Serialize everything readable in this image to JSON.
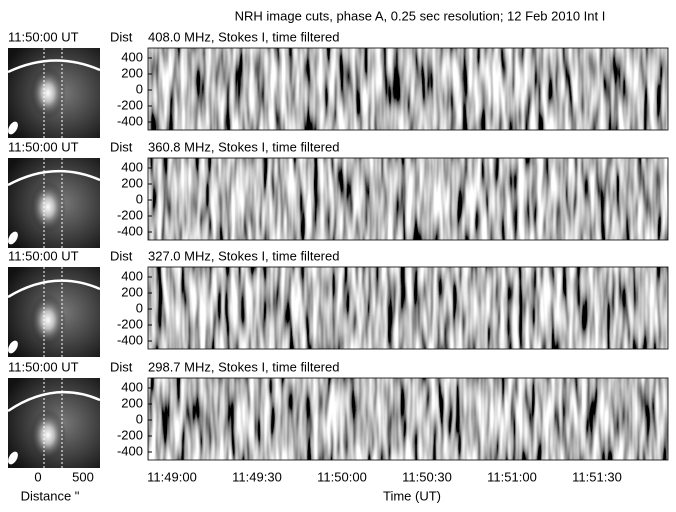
{
  "title": "NRH image cuts, phase A, 0.25 sec resolution; 12 Feb 2010 Int I",
  "y_label": "Dist",
  "x_label": "Time (UT)",
  "thumb_x_label": "Distance \"",
  "yticks": [
    400,
    200,
    0,
    -200,
    -400
  ],
  "xticks": [
    "11:49:00",
    "11:49:30",
    "11:50:00",
    "11:50:30",
    "11:51:00",
    "11:51:30"
  ],
  "thumb_xticks": [
    0,
    500
  ],
  "panels": [
    {
      "time": "11:50:00 UT",
      "label": "408.0 MHz, Stokes I, time filtered"
    },
    {
      "time": "11:50:00 UT",
      "label": "360.8 MHz, Stokes I, time filtered"
    },
    {
      "time": "11:50:00 UT",
      "label": "327.0 MHz, Stokes I, time filtered"
    },
    {
      "time": "11:50:00 UT",
      "label": "298.7 MHz, Stokes I, time filtered"
    }
  ]
}
